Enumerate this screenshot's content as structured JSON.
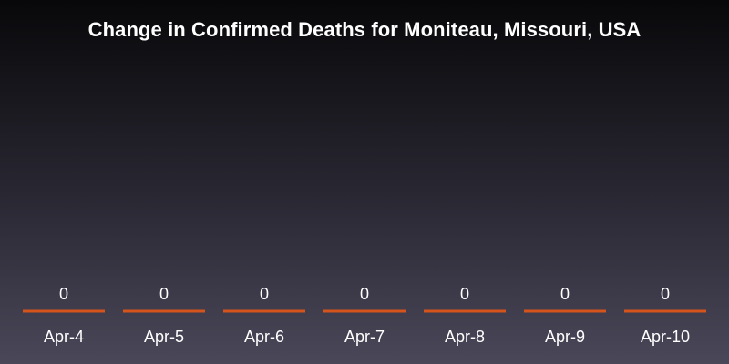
{
  "chart_data": {
    "type": "bar",
    "title": "Change in Confirmed Deaths for Moniteau, Missouri, USA",
    "categories": [
      "Apr-4",
      "Apr-5",
      "Apr-6",
      "Apr-7",
      "Apr-8",
      "Apr-9",
      "Apr-10"
    ],
    "values": [
      0,
      0,
      0,
      0,
      0,
      0,
      0
    ],
    "value_labels": [
      "0",
      "0",
      "0",
      "0",
      "0",
      "0",
      "0"
    ],
    "xlabel": "",
    "ylabel": "",
    "grid": false,
    "legend": "none",
    "bar_color": "#d4541c"
  }
}
